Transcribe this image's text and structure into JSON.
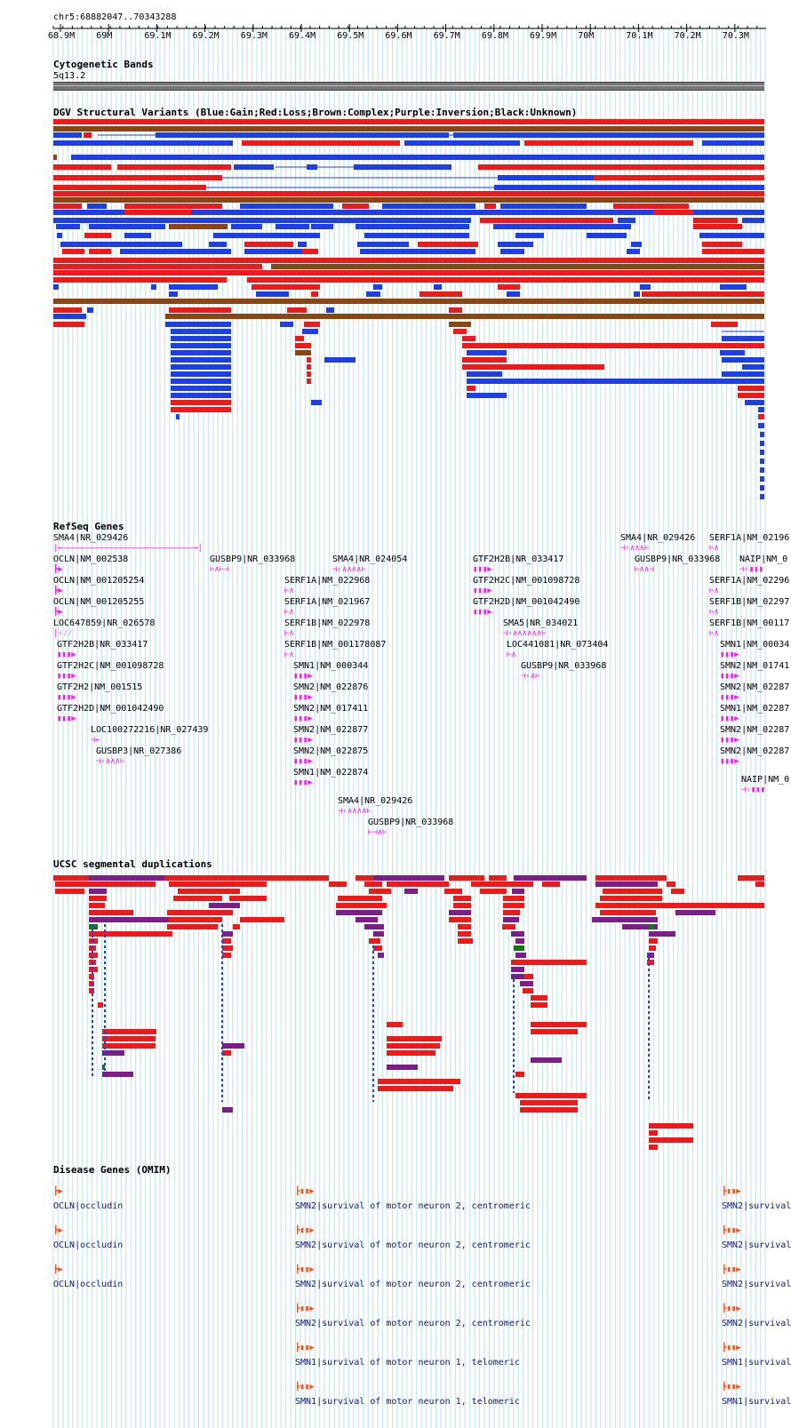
{
  "position": "chr5:68882047..70343288",
  "ruler": {
    "ticks": [
      "68.9M",
      "69M",
      "69.1M",
      "69.2M",
      "69.3M",
      "69.4M",
      "69.5M",
      "69.6M",
      "69.7M",
      "69.8M",
      "69.9M",
      "70M",
      "70.1M",
      "70.2M",
      "70.3M"
    ]
  },
  "tracks": {
    "cytoband": {
      "title": "Cytogenetic Bands",
      "band": "5q13.2"
    },
    "dgv": {
      "title": "DGV Structural Variants (Blue:Gain;Red:Loss;Brown:Complex;Purple:Inversion;Black:Unknown)"
    },
    "refseq": {
      "title": "RefSeq Genes"
    },
    "segdup": {
      "title": "UCSC segmental duplications"
    },
    "omim": {
      "title": "Disease Genes (OMIM)"
    }
  },
  "colors": {
    "gain": "#1e3ee6",
    "loss": "#ee1a1a",
    "complex": "#8b4513",
    "inversion": "#7e1d8a",
    "unknown": "#000000",
    "refseq": "#ee22ee",
    "segdup_green": "#117711",
    "grid": "#bfe3ea",
    "omim_glyph": "#ee5522",
    "omim_text": "#0a1a8a"
  },
  "refseq_genes": [
    {
      "label": "SMA4|NR_029426",
      "glyph": "|←———————————————————————————→|"
    },
    {
      "label": "OCLN|NM_002538",
      "glyph": "┣▶"
    },
    {
      "label": "OCLN|NM_001205254",
      "glyph": "┣▶"
    },
    {
      "label": "OCLN|NM_001205255",
      "glyph": "┣▶"
    },
    {
      "label": "LOC647859|NR_026578",
      "glyph": "|‹⁄⁄"
    },
    {
      "label": "GTF2H2B|NR_033417",
      "glyph": "▮▮▮▶"
    },
    {
      "label": "GTF2H2C|NM_001098728",
      "glyph": "▮▮▮▶"
    },
    {
      "label": "GTF2H2|NM_001515",
      "glyph": "▮▮▮▶"
    },
    {
      "label": "GTF2H2D|NM_001042490",
      "glyph": "▮▮▮▶"
    },
    {
      "label": "LOC100272216|NR_027439",
      "glyph": "⊣←"
    },
    {
      "label": "GUSBP3|NR_027386",
      "glyph": "⊣‹∧∧∧⊢"
    },
    {
      "label": "GUSBP9|NR_033968",
      "glyph": "⊢∧⊢⊣"
    },
    {
      "label": "SMA4|NR_024054",
      "glyph": "⊣‹∧∧∧∧⊢"
    },
    {
      "label": "SERF1A|NM_022968",
      "glyph": "⊢∧"
    },
    {
      "label": "SERF1A|NM_021967",
      "glyph": "⊢∧"
    },
    {
      "label": "SERF1B|NM_022978",
      "glyph": "⊢∧"
    },
    {
      "label": "SERF1B|NM_001178087",
      "glyph": "⊢∧"
    },
    {
      "label": "SMN1|NM_000344",
      "glyph": "▮▮▮▶"
    },
    {
      "label": "SMN2|NM_022876",
      "glyph": "▮▮▮▶"
    },
    {
      "label": "SMN2|NM_017411",
      "glyph": "▮▮▮▶"
    },
    {
      "label": "SMN2|NM_022877",
      "glyph": "▮▮▮▶"
    },
    {
      "label": "SMN2|NM_022875",
      "glyph": "▮▮▮▶"
    },
    {
      "label": "SMN1|NM_022874",
      "glyph": "▮▮▮▶"
    },
    {
      "label": "SMA4|NR_029426",
      "glyph": "⊣‹∧∧∧∧⊢"
    },
    {
      "label": "GUSBP9|NR_033968",
      "glyph": "⊢⊣∧⊢"
    },
    {
      "label": "GTF2H2B|NR_033417",
      "glyph": "▮▮▮▶"
    },
    {
      "label": "GTF2H2C|NM_001098728",
      "glyph": "▮▮▮▶"
    },
    {
      "label": "GTF2H2D|NM_001042490",
      "glyph": "▮▮▮▶"
    },
    {
      "label": "SMA5|NR_034021",
      "glyph": "⊣‹∧∧∧∧∧∧⊢"
    },
    {
      "label": "LOC441081|NR_073404",
      "glyph": "⊢∧"
    },
    {
      "label": "GUSBP9|NR_033968",
      "glyph": "⊣‹∧⊢"
    },
    {
      "label": "SMA4|NR_029426",
      "glyph": "⊣‹∧∧∧⊢"
    },
    {
      "label": "GUSBP9|NR_033968",
      "glyph": "⊢∧∧⊣"
    },
    {
      "label": "SERF1A|NM_02196",
      "glyph": "⊢∧"
    },
    {
      "label": "NAIP|NM_0",
      "glyph": "⊣‹▮▮▮"
    },
    {
      "label": "SERF1A|NM_02296",
      "glyph": "⊢∧"
    },
    {
      "label": "SERF1B|NM_02297",
      "glyph": "⊢∧"
    },
    {
      "label": "SERF1B|NM_00117",
      "glyph": "⊢∧"
    },
    {
      "label": "SMN1|NM_00034",
      "glyph": "▮▮▮▶"
    },
    {
      "label": "SMN2|NM_01741",
      "glyph": "▮▮▮▶"
    },
    {
      "label": "SMN2|NM_02287",
      "glyph": "▮▮▮▶"
    },
    {
      "label": "SMN1|NM_02287",
      "glyph": "▮▮▮▶"
    },
    {
      "label": "SMN2|NM_02287",
      "glyph": "▮▮▮▶"
    },
    {
      "label": "SMN2|NM_02287",
      "glyph": "▮▮▮▶"
    },
    {
      "label": "NAIP|NM_0",
      "glyph": "⊣‹▮▮▮"
    }
  ],
  "omim_genes": [
    {
      "label": "OCLN|occludin",
      "glyph": "┣▶"
    },
    {
      "label": "OCLN|occludin",
      "glyph": "┣▶"
    },
    {
      "label": "OCLN|occludin",
      "glyph": "┣▶"
    },
    {
      "label": "SMN2|survival of motor neuron 2, centromeric",
      "glyph": "┣▮▮▶"
    },
    {
      "label": "SMN2|survival of motor neuron 2, centromeric",
      "glyph": "┣▮▮▶"
    },
    {
      "label": "SMN2|survival of motor neuron 2, centromeric",
      "glyph": "┣▮▮▶"
    },
    {
      "label": "SMN2|survival of motor neuron 2, centromeric",
      "glyph": "┣▮▮▶"
    },
    {
      "label": "SMN1|survival of motor neuron 1, telomeric",
      "glyph": "┣▮▮▶"
    },
    {
      "label": "SMN1|survival of motor neuron 1, telomeric",
      "glyph": "┣▮▮▶"
    },
    {
      "label": "SMN2|survival",
      "glyph": "┣▮▮▶"
    },
    {
      "label": "SMN2|survival",
      "glyph": "┣▮▮▶"
    },
    {
      "label": "SMN2|survival",
      "glyph": "┣▮▮▶"
    },
    {
      "label": "SMN2|survival",
      "glyph": "┣▮▮▶"
    },
    {
      "label": "SMN1|survival",
      "glyph": "┣▮▮▶"
    },
    {
      "label": "SMN1|survival",
      "glyph": "┣▮▮▶"
    }
  ]
}
